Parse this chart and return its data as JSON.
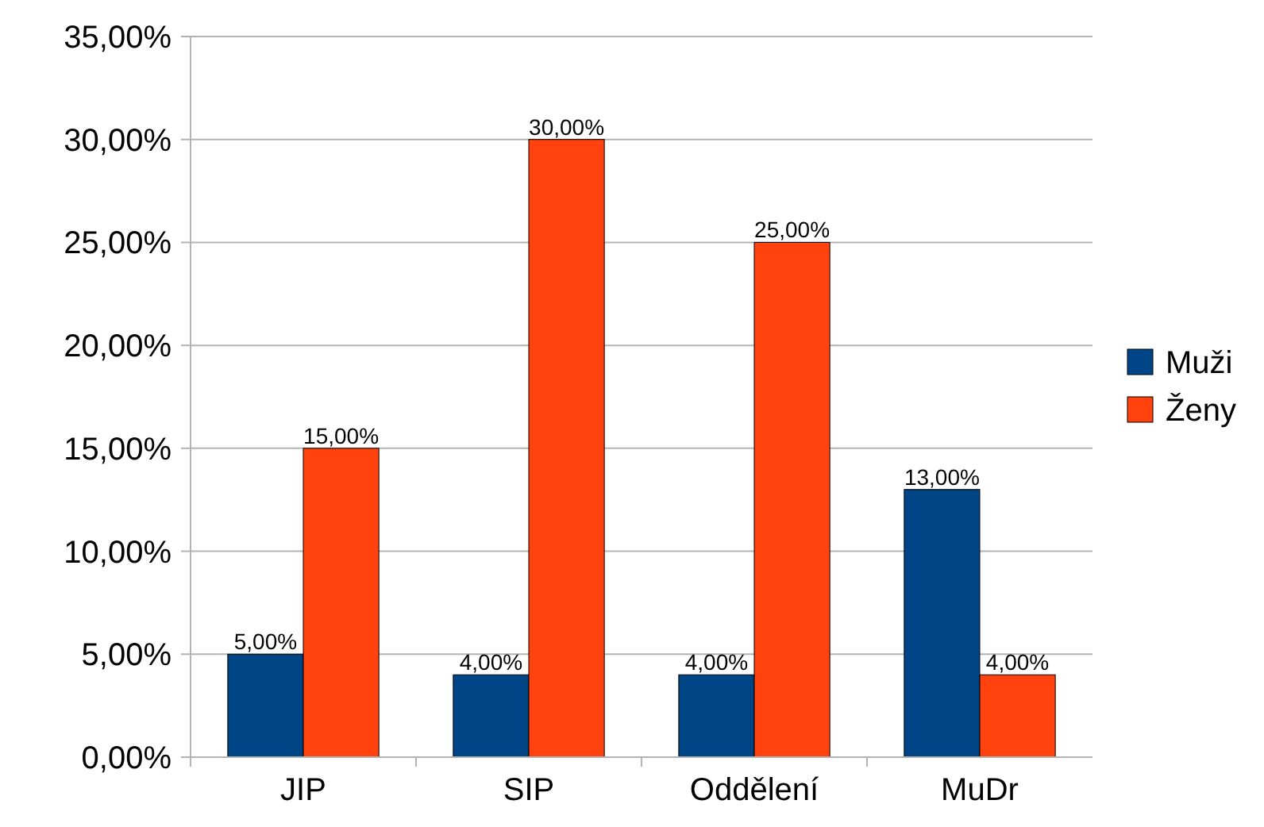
{
  "chart_data": {
    "type": "bar",
    "categories": [
      "JIP",
      "SIP",
      "Oddělení",
      "MuDr"
    ],
    "series": [
      {
        "name": "Muži",
        "color": "#004586",
        "values": [
          5,
          4,
          4,
          13
        ],
        "value_labels": [
          "5,00%",
          "4,00%",
          "4,00%",
          "13,00%"
        ]
      },
      {
        "name": "Ženy",
        "color": "#ff420e",
        "values": [
          15,
          30,
          25,
          4
        ],
        "value_labels": [
          "15,00%",
          "30,00%",
          "25,00%",
          "4,00%"
        ]
      }
    ],
    "ylim": [
      0,
      35
    ],
    "yticks": [
      {
        "value": 0,
        "label": "0,00%"
      },
      {
        "value": 5,
        "label": "5,00%"
      },
      {
        "value": 10,
        "label": "10,00%"
      },
      {
        "value": 15,
        "label": "15,00%"
      },
      {
        "value": 20,
        "label": "20,00%"
      },
      {
        "value": 25,
        "label": "25,00%"
      },
      {
        "value": 30,
        "label": "30,00%"
      },
      {
        "value": 35,
        "label": "35,00%"
      }
    ],
    "grid": "y",
    "legend": "right"
  }
}
